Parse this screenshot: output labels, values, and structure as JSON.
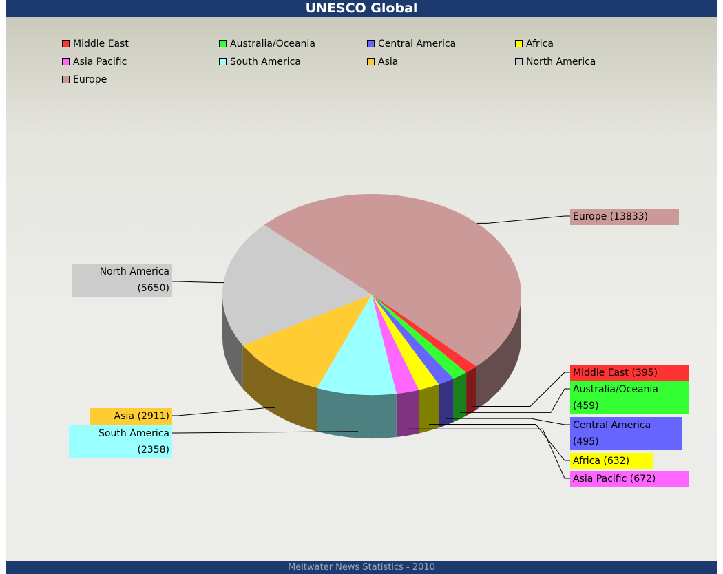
{
  "chart_data": {
    "type": "pie",
    "title": "UNESCO Global",
    "categories": [
      "Middle East",
      "Australia/Oceania",
      "Central America",
      "Africa",
      "Asia Pacific",
      "South America",
      "Asia",
      "North America",
      "Europe"
    ],
    "values": [
      395,
      459,
      495,
      632,
      672,
      2358,
      2911,
      5650,
      13833
    ],
    "value_labels": [
      "Middle East (395)",
      "Australia/Oceania (459)",
      "Central America (495)",
      "Africa (632)",
      "Asia Pacific (672)",
      "South America (2358)",
      "Asia (2911)",
      "North America (5650)",
      "Europe (13833)"
    ],
    "colors": [
      "#ff3333",
      "#33ff33",
      "#6666ff",
      "#ffff00",
      "#ff66ff",
      "#99ffff",
      "#ffcc33",
      "#cccccc",
      "#cc9999"
    ],
    "footer": "Meltwater News Statistics - 2010"
  }
}
